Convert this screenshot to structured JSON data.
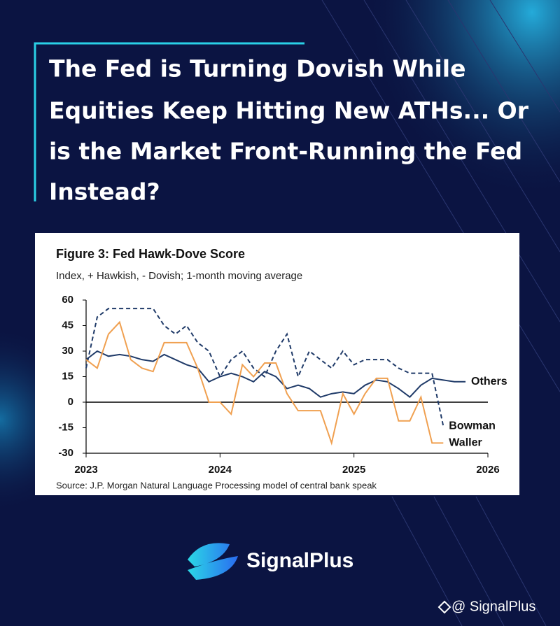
{
  "headline": [
    "The Fed is Turning Dovish While",
    "Equities Keep Hitting New ATHs... Or",
    "is the Market Front-Running the Fed",
    "Instead?"
  ],
  "brand": "SignalPlus",
  "watermark": "@ SignalPlus",
  "chart_data": {
    "type": "line",
    "title": "Figure 3: Fed Hawk-Dove Score",
    "subtitle": "Index, + Hawkish, - Dovish; 1-month moving average",
    "source": "Source: J.P. Morgan Natural Language Processing model of central bank speak",
    "x": [
      2023,
      2023.083,
      2023.167,
      2023.25,
      2023.333,
      2023.417,
      2023.5,
      2023.583,
      2023.667,
      2023.75,
      2023.833,
      2023.917,
      2024,
      2024.083,
      2024.167,
      2024.25,
      2024.333,
      2024.417,
      2024.5,
      2024.583,
      2024.667,
      2024.75,
      2024.833,
      2024.917,
      2025,
      2025.083,
      2025.167,
      2025.25,
      2025.333,
      2025.417,
      2025.5,
      2025.583,
      2025.667,
      2025.75,
      2025.833
    ],
    "series": [
      {
        "name": "Others",
        "color": "#1f3a68",
        "dashed": false,
        "values": [
          25,
          30,
          27,
          28,
          27,
          25,
          24,
          28,
          25,
          22,
          20,
          12,
          15,
          17,
          15,
          12,
          18,
          15,
          8,
          10,
          8,
          3,
          5,
          6,
          5,
          10,
          13,
          12,
          8,
          3,
          10,
          14,
          13,
          12,
          12
        ]
      },
      {
        "name": "Bowman",
        "color": "#1f3a68",
        "dashed": true,
        "values": [
          20,
          50,
          55,
          55,
          55,
          55,
          55,
          45,
          40,
          45,
          35,
          30,
          15,
          25,
          30,
          20,
          15,
          30,
          40,
          15,
          30,
          25,
          20,
          30,
          22,
          25,
          25,
          25,
          20,
          17,
          17,
          17,
          -14,
          null,
          null
        ]
      },
      {
        "name": "Waller",
        "color": "#f0a050",
        "dashed": false,
        "values": [
          25,
          20,
          40,
          47,
          25,
          20,
          18,
          35,
          35,
          35,
          20,
          0,
          0,
          -7,
          22,
          15,
          23,
          23,
          5,
          -5,
          -5,
          -5,
          -24,
          5,
          -7,
          5,
          14,
          14,
          -11,
          -11,
          3,
          -24,
          -24,
          null,
          null
        ]
      }
    ],
    "xlim": [
      2023,
      2026
    ],
    "xticks": [
      2023,
      2024,
      2025,
      2026
    ],
    "ylim": [
      -30,
      60
    ],
    "yticks": [
      -30,
      -15,
      0,
      15,
      30,
      45,
      60
    ]
  }
}
